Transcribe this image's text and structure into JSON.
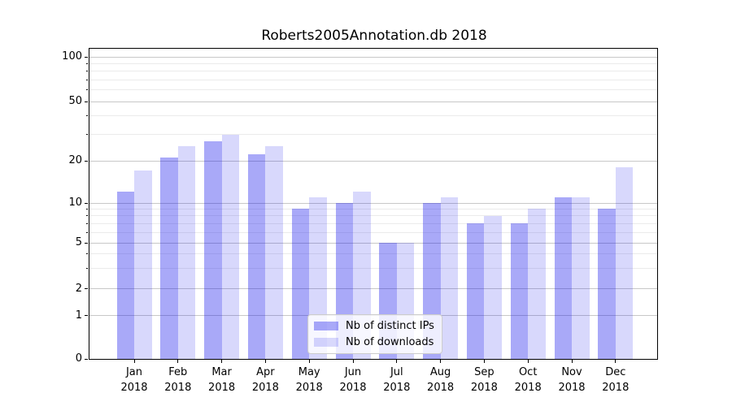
{
  "title": "Roberts2005Annotation.db 2018",
  "chart_data": {
    "type": "bar",
    "title": "Roberts2005Annotation.db 2018",
    "categories": [
      "Jan 2018",
      "Feb 2018",
      "Mar 2018",
      "Apr 2018",
      "May 2018",
      "Jun 2018",
      "Jul 2018",
      "Aug 2018",
      "Sep 2018",
      "Oct 2018",
      "Nov 2018",
      "Dec 2018"
    ],
    "series": [
      {
        "name": "Nb of distinct IPs",
        "color": "#0a0aeb",
        "alpha": 0.35,
        "values": [
          12,
          21,
          27,
          22,
          9,
          10,
          5,
          10,
          7,
          7,
          11,
          9
        ]
      },
      {
        "name": "Nb of downloads",
        "color": "#0a0aeb",
        "alpha": 0.16,
        "values": [
          17,
          25,
          30,
          25,
          11,
          12,
          5,
          11,
          8,
          9,
          11,
          18
        ]
      }
    ],
    "xlabel": "",
    "ylabel": "",
    "y_axis": {
      "scale": "symlog",
      "major_ticks": [
        0,
        1,
        2,
        5,
        10,
        20,
        50,
        100
      ],
      "minor_ticks": [
        3,
        4,
        6,
        7,
        8,
        9,
        30,
        40,
        60,
        70,
        80,
        90
      ],
      "ylim_bottom": 0
    },
    "grid": "on",
    "legend_position": "lower center",
    "colors": {
      "major_grid": "#c8c8c8",
      "minor_grid": "#ebebeb",
      "spine": "#000000",
      "background": "#ffffff"
    }
  },
  "legend": {
    "entries": [
      "Nb of distinct IPs",
      "Nb of downloads"
    ]
  }
}
